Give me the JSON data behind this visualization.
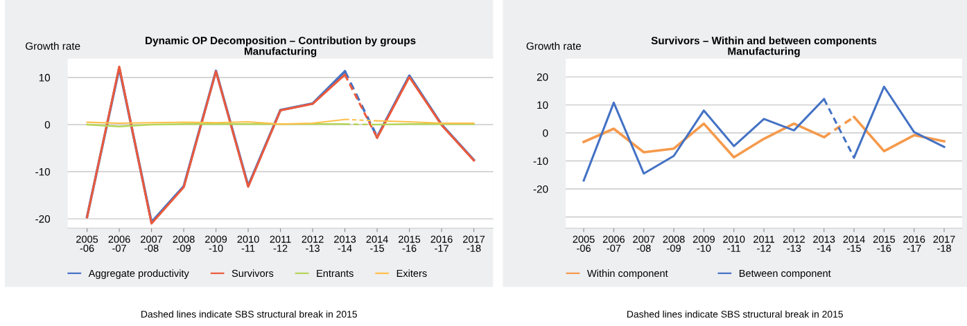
{
  "chart_data": [
    {
      "type": "line",
      "title": "Dynamic OP Decomposition – Contribution by groups\nManufacturing",
      "ylabel": "Growth rate",
      "categories": [
        "2005\n-06",
        "2006\n-07",
        "2007\n-08",
        "2008\n-09",
        "2009\n-10",
        "2010\n-11",
        "2011\n-12",
        "2012\n-13",
        "2013\n-14",
        "2014\n-15",
        "2015\n-16",
        "2016\n-17",
        "2017\n-18"
      ],
      "ylim": [
        -22,
        14
      ],
      "yticks": [
        -20,
        -10,
        0,
        10
      ],
      "grid": "y",
      "legend": "bottom",
      "marker": "none",
      "annotations": [
        "Dashed lines indicate SBS structural break in 2015"
      ],
      "series": [
        {
          "name": "Aggregate productivity",
          "color": "#4472c4",
          "line_style": "solid",
          "values": [
            -19.6,
            12.0,
            -20.7,
            -13.1,
            11.4,
            -13.0,
            3.1,
            4.5,
            11.3,
            null,
            null,
            null,
            null
          ]
        },
        {
          "color": "#4472c4",
          "line_style": "dashed",
          "values": [
            null,
            null,
            null,
            null,
            null,
            null,
            null,
            null,
            11.3,
            -2.6,
            null,
            null,
            null
          ]
        },
        {
          "color": "#4472c4",
          "line_style": "solid",
          "values": [
            null,
            null,
            null,
            null,
            null,
            null,
            null,
            null,
            null,
            -2.6,
            10.4,
            0.0,
            -7.5
          ]
        },
        {
          "name": "Survivors",
          "color": "#ec5a3c",
          "line_style": "solid",
          "values": [
            -19.7,
            12.3,
            -21.0,
            -13.3,
            11.3,
            -13.2,
            3.0,
            4.4,
            10.6,
            null,
            null,
            null,
            null
          ]
        },
        {
          "color": "#ec5a3c",
          "line_style": "dashed",
          "values": [
            null,
            null,
            null,
            null,
            null,
            null,
            null,
            null,
            10.6,
            -2.8,
            null,
            null,
            null
          ]
        },
        {
          "color": "#ec5a3c",
          "line_style": "solid",
          "values": [
            null,
            null,
            null,
            null,
            null,
            null,
            null,
            null,
            null,
            -2.8,
            10.1,
            -0.1,
            -7.6
          ]
        },
        {
          "name": "Entrants",
          "color": "#b5d55a",
          "line_style": "solid",
          "values": [
            0.0,
            -0.4,
            0.0,
            0.1,
            0.1,
            0.1,
            0.1,
            0.1,
            0.1,
            null,
            null,
            null,
            null
          ]
        },
        {
          "color": "#b5d55a",
          "line_style": "dashed",
          "values": [
            null,
            null,
            null,
            null,
            null,
            null,
            null,
            null,
            0.1,
            0.0,
            null,
            null,
            null
          ]
        },
        {
          "color": "#b5d55a",
          "line_style": "solid",
          "values": [
            null,
            null,
            null,
            null,
            null,
            null,
            null,
            null,
            null,
            0.0,
            0.1,
            0.1,
            0.1
          ]
        },
        {
          "name": "Exiters",
          "color": "#ffbf4a",
          "line_style": "solid",
          "values": [
            0.5,
            0.3,
            0.4,
            0.5,
            0.4,
            0.6,
            0.1,
            0.3,
            1.1,
            null,
            null,
            null,
            null
          ]
        },
        {
          "color": "#ffbf4a",
          "line_style": "dashed",
          "values": [
            null,
            null,
            null,
            null,
            null,
            null,
            null,
            null,
            1.1,
            0.8,
            null,
            null,
            null
          ]
        },
        {
          "color": "#ffbf4a",
          "line_style": "solid",
          "values": [
            null,
            null,
            null,
            null,
            null,
            null,
            null,
            null,
            null,
            0.8,
            0.6,
            0.3,
            0.3
          ]
        }
      ]
    },
    {
      "type": "line",
      "title": "Survivors – Within and between components\nManufacturing",
      "ylabel": "Growth rate",
      "categories": [
        "2005\n-06",
        "2006\n-07",
        "2007\n-08",
        "2008\n-09",
        "2009\n-10",
        "2010\n-11",
        "2011\n-12",
        "2012\n-13",
        "2013\n-14",
        "2014\n-15",
        "2015\n-16",
        "2016\n-17",
        "2017\n-18"
      ],
      "ylim": [
        -34,
        26.5
      ],
      "yticks": [
        {
          "value": -30,
          "label": null
        },
        -20,
        -10,
        0,
        10,
        20
      ],
      "grid": "y",
      "legend": "bottom",
      "marker": "none",
      "annotations": [
        "Dashed lines indicate SBS structural break in 2015"
      ],
      "series": [
        {
          "name": "Within component",
          "color": "#f59a4c",
          "line_style": "solid",
          "values": [
            -3.2,
            1.5,
            -6.9,
            -5.6,
            3.3,
            -8.7,
            -2.1,
            3.3,
            -1.5,
            null,
            null,
            null,
            null
          ]
        },
        {
          "color": "#f59a4c",
          "line_style": "dashed",
          "values": [
            null,
            null,
            null,
            null,
            null,
            null,
            null,
            null,
            -1.5,
            5.7,
            null,
            null,
            null
          ]
        },
        {
          "color": "#f59a4c",
          "line_style": "solid",
          "values": [
            null,
            null,
            null,
            null,
            null,
            null,
            null,
            null,
            null,
            5.7,
            -6.5,
            -0.8,
            -3.0
          ]
        },
        {
          "name": "Between component",
          "color": "#4472c4",
          "line_style": "solid",
          "values": [
            -17.0,
            10.8,
            -14.5,
            -8.2,
            8.0,
            -4.7,
            5.0,
            0.9,
            12.1,
            null,
            null,
            null,
            null
          ]
        },
        {
          "color": "#4472c4",
          "line_style": "dashed",
          "values": [
            null,
            null,
            null,
            null,
            null,
            null,
            null,
            null,
            12.1,
            -8.8,
            null,
            null,
            null
          ]
        },
        {
          "color": "#4472c4",
          "line_style": "solid",
          "values": [
            null,
            null,
            null,
            null,
            null,
            null,
            null,
            null,
            null,
            -8.8,
            16.5,
            0.3,
            -5.0
          ]
        }
      ]
    }
  ]
}
